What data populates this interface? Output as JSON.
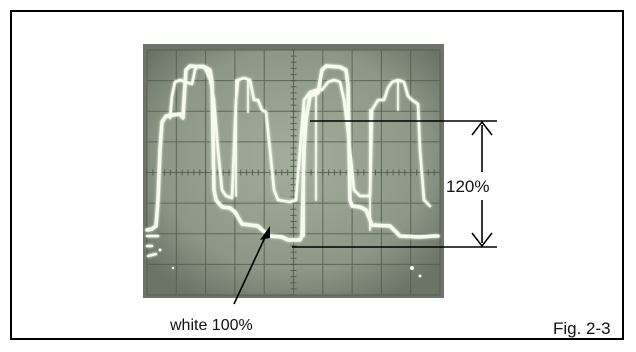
{
  "annotations": {
    "amplitude_label": "120%",
    "white_level_label": "white 100%",
    "figure_caption": "Fig. 2-3"
  },
  "colors": {
    "frame": "#000000",
    "screen_bezel": "#6f746a",
    "screen": "#8f9a8a",
    "grid": "#4e5a4c",
    "trace": "#f6fbef",
    "annotation_line": "#000000"
  }
}
